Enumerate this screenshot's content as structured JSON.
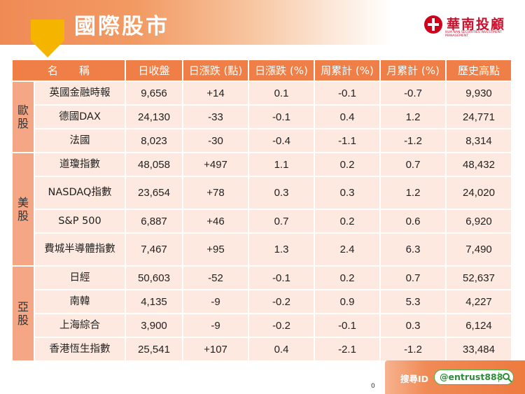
{
  "title": "國際股市",
  "logo": {
    "name": "華南投顧",
    "subtitle": "HUA NAN SECURITIES INVESTMENT MANAGEMENT"
  },
  "table": {
    "headers": [
      "名　　稱",
      "日收盤",
      "日漲跌 (點)",
      "日漲跌 (%)",
      "周累計 (%)",
      "月累計 (%)",
      "歷史高點"
    ],
    "regions": [
      {
        "label": "歐股",
        "rows": [
          {
            "name": "英國金融時報",
            "close": "9,656",
            "change_pts": "+14",
            "dir": "up",
            "change_pct": "0.1",
            "week_pct": "-0.1",
            "month_pct": "-0.7",
            "high": "9,930"
          },
          {
            "name": "德國DAX",
            "close": "24,130",
            "change_pts": "-33",
            "dir": "down",
            "change_pct": "-0.1",
            "week_pct": "0.4",
            "month_pct": "1.2",
            "high": "24,771"
          },
          {
            "name": "法國",
            "close": "8,023",
            "change_pts": "-30",
            "dir": "down",
            "change_pct": "-0.4",
            "week_pct": "-1.1",
            "month_pct": "-1.2",
            "high": "8,314"
          }
        ]
      },
      {
        "label": "美股",
        "rows": [
          {
            "name": "道瓊指數",
            "close": "48,058",
            "change_pts": "+497",
            "dir": "up",
            "change_pct": "1.1",
            "week_pct": "0.2",
            "month_pct": "0.7",
            "high": "48,432"
          },
          {
            "name": "NASDAQ指數",
            "close": "23,654",
            "change_pts": "+78",
            "dir": "up",
            "change_pct": "0.3",
            "week_pct": "0.3",
            "month_pct": "1.2",
            "high": "24,020"
          },
          {
            "name": "S&P 500",
            "close": "6,887",
            "change_pts": "+46",
            "dir": "up",
            "change_pct": "0.7",
            "week_pct": "0.2",
            "month_pct": "0.6",
            "high": "6,920"
          },
          {
            "name": "費城半導體指數",
            "close": "7,467",
            "change_pts": "+95",
            "dir": "up",
            "change_pct": "1.3",
            "week_pct": "2.4",
            "month_pct": "6.3",
            "high": "7,490"
          }
        ]
      },
      {
        "label": "亞股",
        "rows": [
          {
            "name": "日經",
            "close": "50,603",
            "change_pts": "-52",
            "dir": "down",
            "change_pct": "-0.1",
            "week_pct": "0.2",
            "month_pct": "0.7",
            "high": "52,637"
          },
          {
            "name": "南韓",
            "close": "4,135",
            "change_pts": "-9",
            "dir": "down",
            "change_pct": "-0.2",
            "week_pct": "0.9",
            "month_pct": "5.3",
            "high": "4,227"
          },
          {
            "name": "上海綜合",
            "close": "3,900",
            "change_pts": "-9",
            "dir": "down",
            "change_pct": "-0.2",
            "week_pct": "-0.1",
            "month_pct": "0.3",
            "high": "6,124"
          },
          {
            "name": "香港恆生指數",
            "close": "25,541",
            "change_pts": "+107",
            "dir": "up",
            "change_pct": "0.4",
            "week_pct": "-2.1",
            "month_pct": "-1.2",
            "high": "33,484"
          }
        ]
      }
    ]
  },
  "footer": {
    "search_label": "搜尋ID",
    "search_value": "@entrust888",
    "page_number": "0"
  },
  "colors": {
    "accent": "#f07f47",
    "row_bg": "#fde9df",
    "region_bg": "#f4a685",
    "up": "#e51c23",
    "down": "#1aa81a",
    "brand": "#c8102e"
  }
}
